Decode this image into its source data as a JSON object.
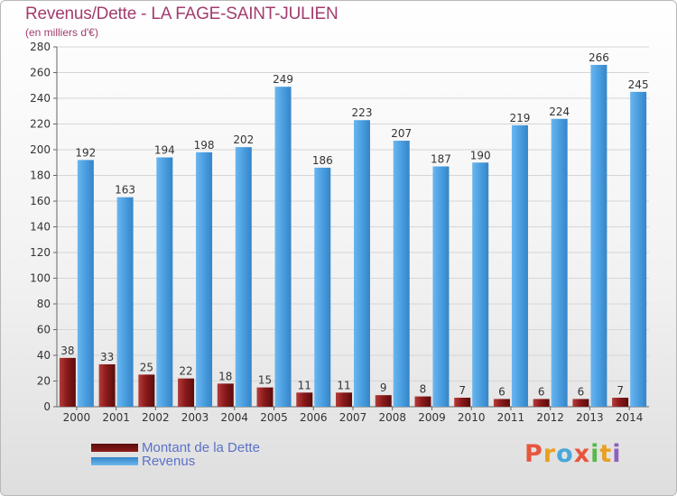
{
  "title": "Revenus/Dette - LA FAGE-SAINT-JULIEN",
  "subtitle": "(en milliers d'€)",
  "logo": {
    "letters": [
      "P",
      "r",
      "o",
      "x",
      "i",
      "t",
      "i"
    ]
  },
  "colors": {
    "debt": "#8b1a1a",
    "debt_light": "#b33c3c",
    "debt_dark": "#5a0c0c",
    "revenue": "#4a9ee0",
    "revenue_light": "#6ab6ee",
    "revenue_dark": "#3585c7",
    "axis_text": "#333333",
    "grid": "#d6d6d6",
    "logo": [
      "#e8553d",
      "#e9a020",
      "#4aa8d8",
      "#e8553d",
      "#58b848",
      "#e9a020",
      "#9060c0"
    ]
  },
  "chart_data": {
    "type": "bar",
    "categories": [
      "2000",
      "2001",
      "2002",
      "2003",
      "2004",
      "2005",
      "2006",
      "2007",
      "2008",
      "2009",
      "2010",
      "2011",
      "2012",
      "2013",
      "2014"
    ],
    "series": [
      {
        "name": "Montant de la Dette",
        "values": [
          38,
          33,
          25,
          22,
          18,
          15,
          11,
          11,
          9,
          8,
          7,
          6,
          6,
          6,
          7
        ]
      },
      {
        "name": "Revenus",
        "values": [
          192,
          163,
          194,
          198,
          202,
          249,
          186,
          223,
          207,
          187,
          190,
          219,
          224,
          266,
          245
        ]
      }
    ],
    "ylim": [
      0,
      280
    ],
    "yticks": [
      0,
      20,
      40,
      60,
      80,
      100,
      120,
      140,
      160,
      180,
      200,
      220,
      240,
      260,
      280
    ],
    "grid": true,
    "legend_position": "bottom-left"
  }
}
